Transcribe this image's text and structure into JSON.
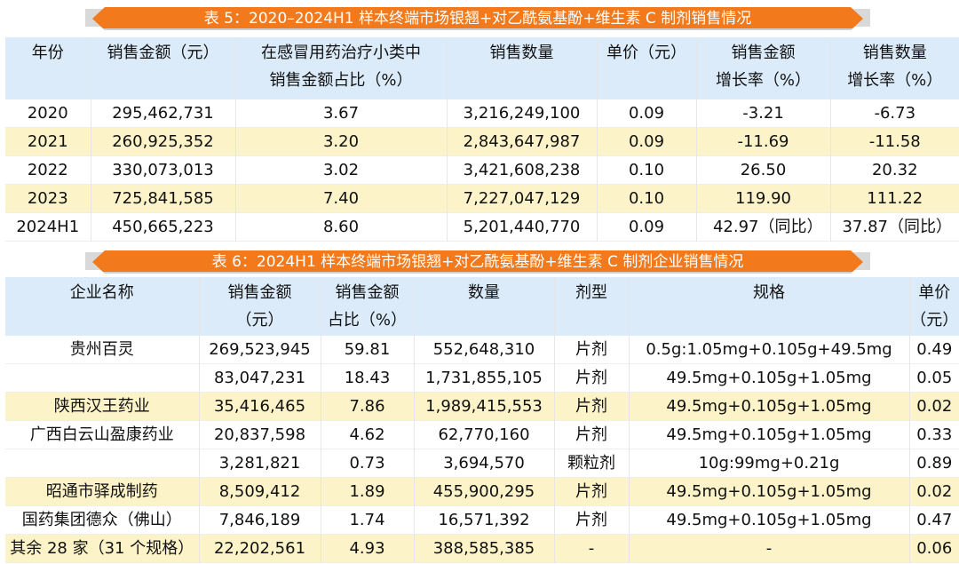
{
  "table5": {
    "title": "表 5：2020–2024H1 样本终端市场银翘+对乙酰氨基酚+维生素 C 制剂销售情况",
    "headers": [
      {
        "l1": "年份",
        "l2": ""
      },
      {
        "l1": "销售金额（元）",
        "l2": ""
      },
      {
        "l1": "在感冒用药治疗小类中",
        "l2": "销售金额占比（%）"
      },
      {
        "l1": "销售数量",
        "l2": ""
      },
      {
        "l1": "单价（元）",
        "l2": ""
      },
      {
        "l1": "销售金额",
        "l2": "增长率（%）"
      },
      {
        "l1": "销售数量",
        "l2": "增长率（%）"
      }
    ],
    "rows": [
      [
        "2020",
        "295,462,731",
        "3.67",
        "3,216,249,100",
        "0.09",
        "-3.21",
        "-6.73"
      ],
      [
        "2021",
        "260,925,352",
        "3.20",
        "2,843,647,987",
        "0.09",
        "-11.69",
        "-11.58"
      ],
      [
        "2022",
        "330,073,013",
        "3.02",
        "3,421,608,238",
        "0.10",
        "26.50",
        "20.32"
      ],
      [
        "2023",
        "725,841,585",
        "7.40",
        "7,227,047,129",
        "0.10",
        "119.90",
        "111.22"
      ],
      [
        "2024H1",
        "450,665,223",
        "8.60",
        "5,201,440,770",
        "0.09",
        "42.97（同比）",
        "37.87（同比）"
      ]
    ]
  },
  "table6": {
    "title": "表 6：2024H1 样本终端市场银翘+对乙酰氨基酚+维生素 C 制剂企业销售情况",
    "headers": [
      {
        "l1": "企业名称",
        "l2": ""
      },
      {
        "l1": "销售金额",
        "l2": "（元）"
      },
      {
        "l1": "销售金额",
        "l2": "占比（%）"
      },
      {
        "l1": "数量",
        "l2": ""
      },
      {
        "l1": "剂型",
        "l2": ""
      },
      {
        "l1": "规格",
        "l2": ""
      },
      {
        "l1": "单价",
        "l2": "（元）"
      }
    ],
    "rows": [
      [
        "贵州百灵",
        "269,523,945",
        "59.81",
        "552,648,310",
        "片剂",
        "0.5g:1.05mg+0.105g+49.5mg",
        "0.49"
      ],
      [
        "",
        "83,047,231",
        "18.43",
        "1,731,855,105",
        "片剂",
        "49.5mg+0.105g+1.05mg",
        "0.05"
      ],
      [
        "陕西汉王药业",
        "35,416,465",
        "7.86",
        "1,989,415,553",
        "片剂",
        "49.5mg+0.105g+1.05mg",
        "0.02"
      ],
      [
        "广西白云山盈康药业",
        "20,837,598",
        "4.62",
        "62,770,160",
        "片剂",
        "49.5mg+0.105g+1.05mg",
        "0.33"
      ],
      [
        "",
        "3,281,821",
        "0.73",
        "3,694,570",
        "颗粒剂",
        "10g:99mg+0.21g",
        "0.89"
      ],
      [
        "昭通市驿成制药",
        "8,509,412",
        "1.89",
        "455,900,295",
        "片剂",
        "49.5mg+0.105g+1.05mg",
        "0.02"
      ],
      [
        "国药集团德众（佛山）",
        "7,846,189",
        "1.74",
        "16,571,392",
        "片剂",
        "49.5mg+0.105g+1.05mg",
        "0.47"
      ],
      [
        "其余 28 家（31 个规格）",
        "22,202,561",
        "4.93",
        "388,585,385",
        "-",
        "-",
        "0.06"
      ]
    ]
  }
}
